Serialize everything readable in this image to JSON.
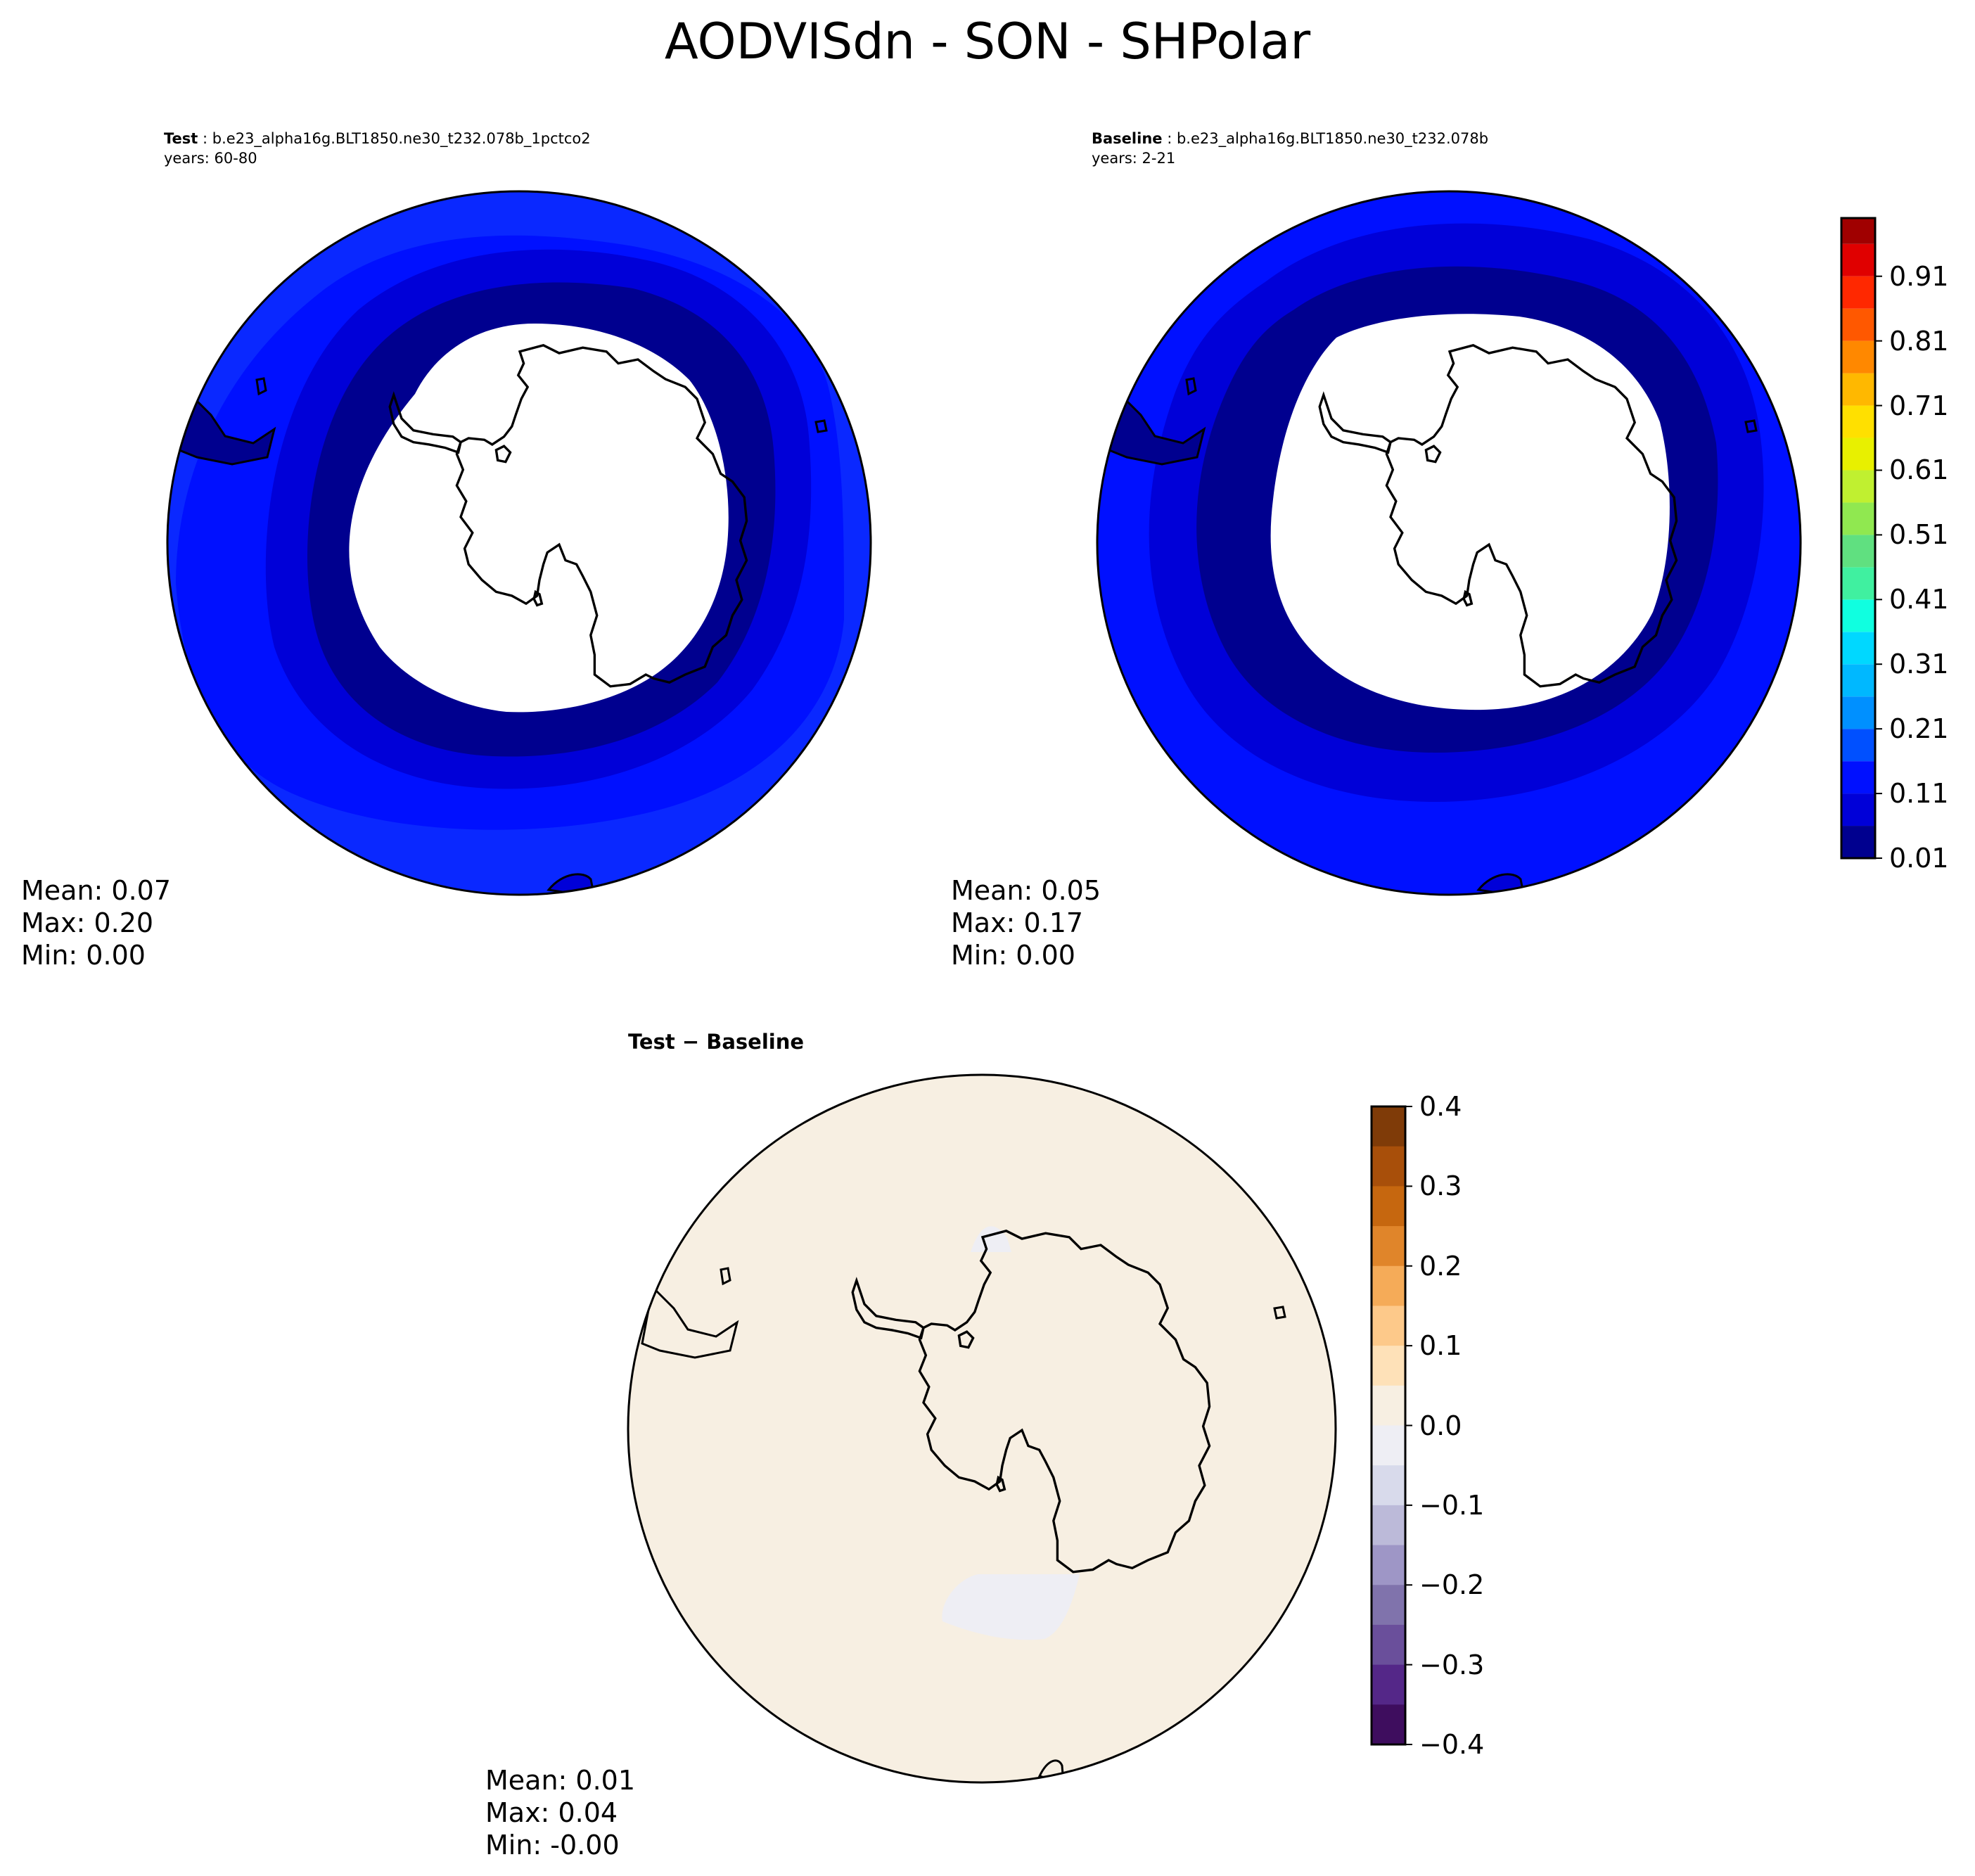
{
  "title": "AODVISdn - SON - SHPolar",
  "panels": {
    "test": {
      "label": "Test",
      "case": "b.e23_alpha16g.BLT1850.ne30_t232.078b_1pctco2",
      "years": "years: 60-80",
      "stats": {
        "mean": "Mean:  0.07",
        "max": "Max:  0.20",
        "min": "Min:  0.00"
      }
    },
    "baseline": {
      "label": "Baseline",
      "case": "b.e23_alpha16g.BLT1850.ne30_t232.078b",
      "years": "years: 2-21",
      "stats": {
        "mean": "Mean:  0.05",
        "max": "Max:  0.17",
        "min": "Min:  0.00"
      }
    },
    "diff": {
      "label": "Test − Baseline",
      "stats": {
        "mean": "Mean:  0.01",
        "max": "Max:  0.04",
        "min": "Min: -0.00"
      }
    }
  },
  "colorbar_main": {
    "ticks": [
      "0.01",
      "0.11",
      "0.21",
      "0.31",
      "0.41",
      "0.51",
      "0.61",
      "0.71",
      "0.81",
      "0.91"
    ],
    "levels": [
      0.01,
      0.06,
      0.11,
      0.16,
      0.21,
      0.26,
      0.31,
      0.36,
      0.41,
      0.46,
      0.51,
      0.56,
      0.61,
      0.66,
      0.71,
      0.76,
      0.81,
      0.86,
      0.91,
      0.96,
      1.0
    ],
    "colors": [
      "#00008f",
      "#0000d8",
      "#0010ff",
      "#0050ff",
      "#0090ff",
      "#00b8ff",
      "#00d8ff",
      "#10ffe0",
      "#40f0a0",
      "#60e080",
      "#90e850",
      "#c0f030",
      "#e8f000",
      "#ffe000",
      "#ffb800",
      "#ff8800",
      "#ff5800",
      "#ff2800",
      "#e00000",
      "#a00000"
    ]
  },
  "colorbar_diff": {
    "ticks": [
      "0.4",
      "0.3",
      "0.2",
      "0.1",
      "0.0",
      "−0.1",
      "−0.2",
      "−0.3",
      "−0.4"
    ],
    "colors_top_to_bottom": [
      "#7f3b08",
      "#a84f0a",
      "#c6670f",
      "#e0852a",
      "#f5ab58",
      "#fdc98a",
      "#fee1b8",
      "#f7efe2",
      "#eeeef4",
      "#d8daeb",
      "#bcbad9",
      "#9e96c6",
      "#8073ac",
      "#6a4f9b",
      "#542788",
      "#3e0d5e"
    ]
  },
  "colors": {
    "outer": "#0010ff",
    "mid": "#0000d8",
    "inner": "#00008f",
    "outer_test_light": "#0a28ff",
    "diff_bg": "#f7efe2",
    "diff_neg": "#eeeef4"
  }
}
